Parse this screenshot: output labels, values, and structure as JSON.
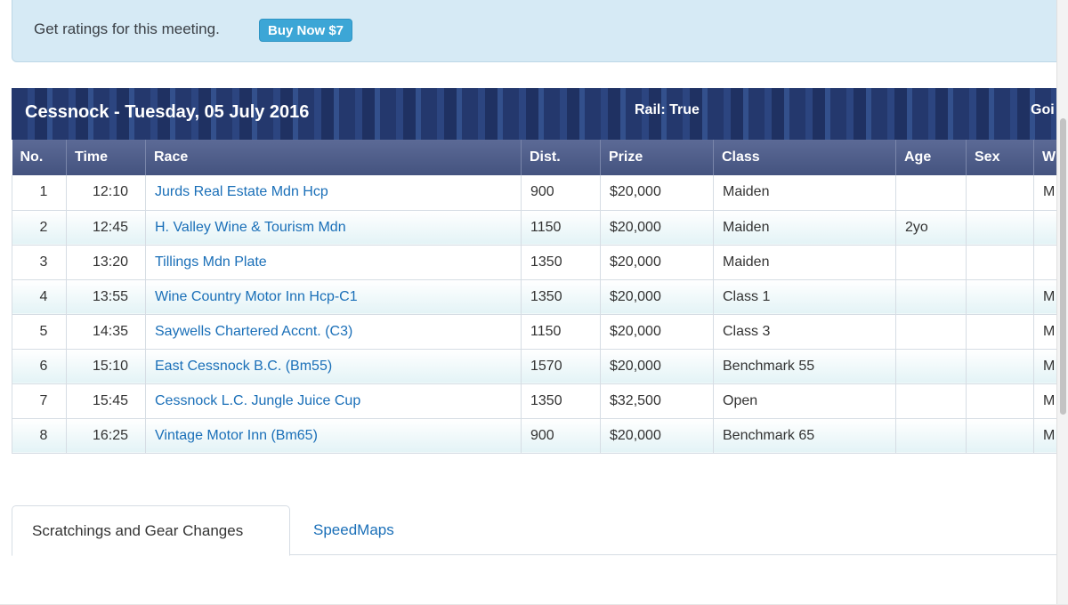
{
  "promo": {
    "text": "Get ratings for this meeting.",
    "button_label": "Buy Now $7"
  },
  "meeting": {
    "title": "Cessnock - Tuesday, 05 July 2016",
    "rail": "Rail: True",
    "going": "Goi"
  },
  "table": {
    "headers": {
      "no": "No.",
      "time": "Time",
      "race": "Race",
      "dist": "Dist.",
      "prize": "Prize",
      "class": "Class",
      "age": "Age",
      "sex": "Sex",
      "w": "W"
    },
    "rows": [
      {
        "no": "1",
        "time": "12:10",
        "race": "Jurds Real Estate Mdn Hcp",
        "dist": "900",
        "prize": "$20,000",
        "class": "Maiden",
        "age": "",
        "sex": "",
        "w": "M"
      },
      {
        "no": "2",
        "time": "12:45",
        "race": "H. Valley Wine & Tourism Mdn",
        "dist": "1150",
        "prize": "$20,000",
        "class": "Maiden",
        "age": "2yo",
        "sex": "",
        "w": ""
      },
      {
        "no": "3",
        "time": "13:20",
        "race": "Tillings Mdn Plate",
        "dist": "1350",
        "prize": "$20,000",
        "class": "Maiden",
        "age": "",
        "sex": "",
        "w": ""
      },
      {
        "no": "4",
        "time": "13:55",
        "race": "Wine Country Motor Inn Hcp-C1",
        "dist": "1350",
        "prize": "$20,000",
        "class": "Class 1",
        "age": "",
        "sex": "",
        "w": "M"
      },
      {
        "no": "5",
        "time": "14:35",
        "race": "Saywells Chartered Accnt. (C3)",
        "dist": "1150",
        "prize": "$20,000",
        "class": "Class 3",
        "age": "",
        "sex": "",
        "w": "M"
      },
      {
        "no": "6",
        "time": "15:10",
        "race": "East Cessnock B.C. (Bm55)",
        "dist": "1570",
        "prize": "$20,000",
        "class": "Benchmark 55",
        "age": "",
        "sex": "",
        "w": "M"
      },
      {
        "no": "7",
        "time": "15:45",
        "race": "Cessnock L.C. Jungle Juice Cup",
        "dist": "1350",
        "prize": "$32,500",
        "class": "Open",
        "age": "",
        "sex": "",
        "w": "M"
      },
      {
        "no": "8",
        "time": "16:25",
        "race": "Vintage Motor Inn (Bm65)",
        "dist": "900",
        "prize": "$20,000",
        "class": "Benchmark 65",
        "age": "",
        "sex": "",
        "w": "M"
      }
    ]
  },
  "tabs": {
    "scratchings": "Scratchings and Gear Changes",
    "speedmaps": "SpeedMaps"
  },
  "colors": {
    "link": "#1a6fb8",
    "header_bg": "#24386d",
    "button_bg": "#3ca6d6",
    "promo_bg": "#d6eaf5"
  }
}
